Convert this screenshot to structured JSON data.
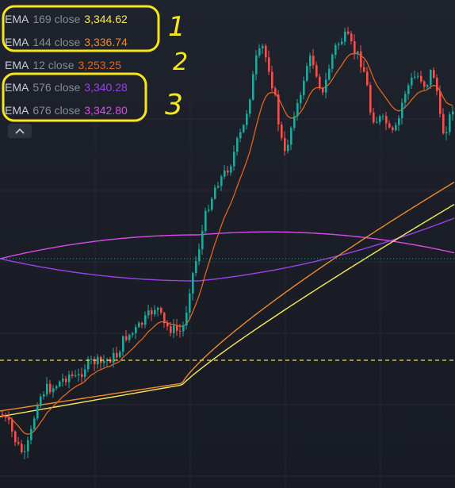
{
  "legend": [
    {
      "name": "EMA",
      "params": "169 close",
      "value": "3,344.62",
      "color": "#f5e95b"
    },
    {
      "name": "EMA",
      "params": "144 close",
      "value": "3,336.74",
      "color": "#f08a2c"
    },
    {
      "name": "EMA",
      "params": "12 close",
      "value": "3,253.25",
      "color": "#e0641e"
    },
    {
      "name": "EMA",
      "params": "576 close",
      "value": "3,340.28",
      "color": "#9a42e6"
    },
    {
      "name": "EMA",
      "params": "676 close",
      "value": "3,342.80",
      "color": "#d94bea"
    }
  ],
  "annotations": {
    "group1": "1",
    "group2": "2",
    "group3": "3",
    "highlight_color": "#f6e61a"
  },
  "collapse_icon": "chevron-up-icon",
  "chart_data": {
    "type": "candlestick",
    "up_color": "#26a69a",
    "down_color": "#ef5350",
    "background": "#1c1f28",
    "series": [
      {
        "name": "EMA 169 close",
        "color": "#f5e95b"
      },
      {
        "name": "EMA 144 close",
        "color": "#f08a2c"
      },
      {
        "name": "EMA 12 close",
        "color": "#e0641e"
      },
      {
        "name": "EMA 576 close",
        "color": "#9a42e6"
      },
      {
        "name": "EMA 676 close",
        "color": "#d94bea"
      }
    ],
    "dashed_price_line_color": "#e8d84a",
    "dotted_price_line_color": "#26a69a"
  }
}
